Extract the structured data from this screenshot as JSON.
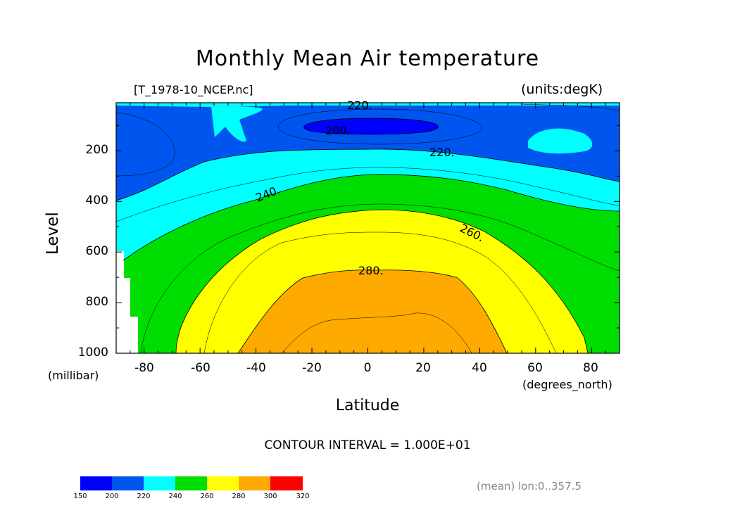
{
  "header": {
    "title": "Monthly Mean Air temperature",
    "file_label": "[T_1978-10_NCEP.nc]",
    "units_label": "(units:degK)",
    "contour_interval": "CONTOUR INTERVAL = 1.000E+01",
    "mean_label": "(mean) lon:0..357.5"
  },
  "chart_data": {
    "type": "contour",
    "title": "Monthly Mean Air temperature",
    "xlabel": "Latitude",
    "x_units": "(degrees_north)",
    "ylabel": "Level",
    "y_units": "(millibar)",
    "xlim": [
      -90,
      90
    ],
    "ylim": [
      1000,
      10
    ],
    "x_ticks": [
      "-80",
      "-60",
      "-40",
      "-20",
      "0",
      "20",
      "40",
      "60",
      "80"
    ],
    "y_ticks": [
      "200",
      "400",
      "600",
      "800",
      "1000"
    ],
    "contour_labels": [
      "220.",
      "200.",
      "220.",
      "240.",
      "260.",
      "280."
    ],
    "colorbar": {
      "levels": [
        "150",
        "200",
        "220",
        "240",
        "260",
        "280",
        "300",
        "320"
      ],
      "colors": [
        "#0000ff",
        "#0055ee",
        "#00ffff",
        "#00dd00",
        "#ffff00",
        "#ffaa00",
        "#ff0000"
      ]
    },
    "fill_colors": {
      "band_200_220": "#0055ee",
      "band_below_200": "#0000ff",
      "band_220_240": "#00ffff",
      "band_240_260": "#00dd00",
      "band_260_280": "#ffff00",
      "band_280_300": "#ffaa00"
    }
  }
}
